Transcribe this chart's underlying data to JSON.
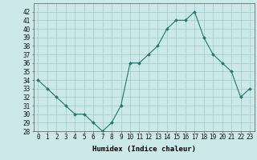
{
  "x": [
    0,
    1,
    2,
    3,
    4,
    5,
    6,
    7,
    8,
    9,
    10,
    11,
    12,
    13,
    14,
    15,
    16,
    17,
    18,
    19,
    20,
    21,
    22,
    23
  ],
  "y": [
    34,
    33,
    32,
    31,
    30,
    30,
    29,
    28,
    29,
    31,
    36,
    36,
    37,
    38,
    40,
    41,
    41,
    42,
    39,
    37,
    36,
    35,
    32,
    33
  ],
  "line_color": "#1a7a6e",
  "marker_color": "#1a7a6e",
  "bg_color": "#cce8e8",
  "grid_color": "#99cccc",
  "xlabel": "Humidex (Indice chaleur)",
  "ylim": [
    28,
    43
  ],
  "xlim": [
    -0.5,
    23.5
  ],
  "yticks": [
    28,
    29,
    30,
    31,
    32,
    33,
    34,
    35,
    36,
    37,
    38,
    39,
    40,
    41,
    42
  ],
  "xticks": [
    0,
    1,
    2,
    3,
    4,
    5,
    6,
    7,
    8,
    9,
    10,
    11,
    12,
    13,
    14,
    15,
    16,
    17,
    18,
    19,
    20,
    21,
    22,
    23
  ],
  "tick_fontsize": 5.5,
  "label_fontsize": 6.5
}
